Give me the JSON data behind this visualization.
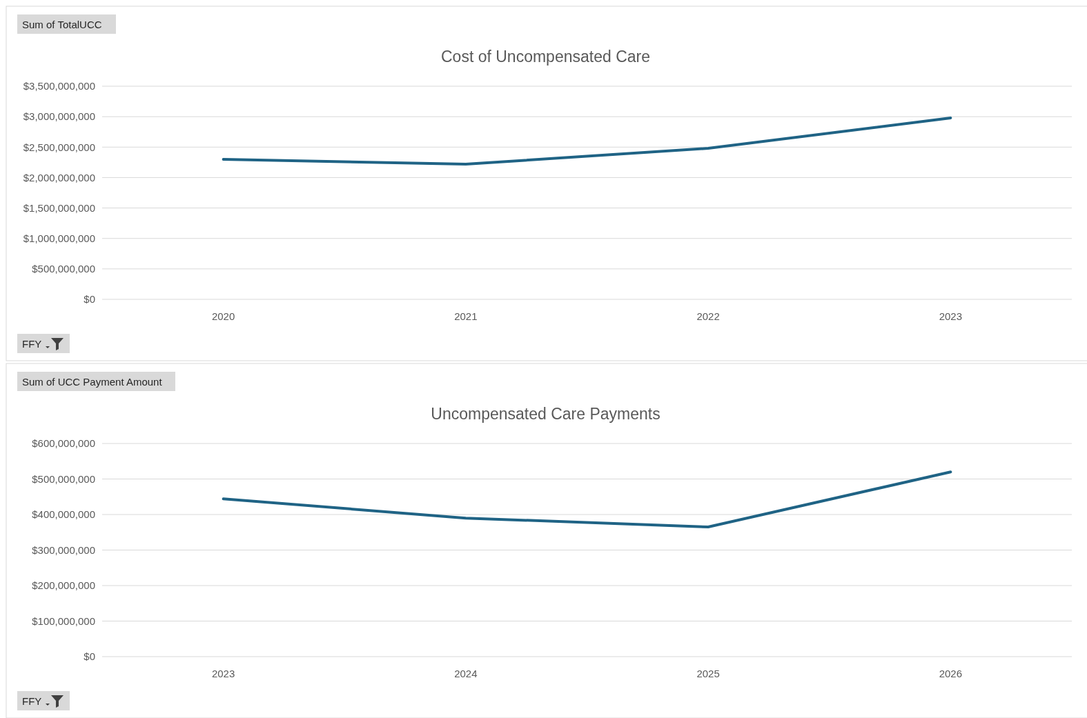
{
  "chart_data": [
    {
      "type": "line",
      "title": "Cost of Uncompensated Care",
      "categories": [
        "2020",
        "2021",
        "2022",
        "2023"
      ],
      "series": [
        {
          "color": "#1f6385",
          "values": [
            2300000000,
            2220000000,
            2480000000,
            2980000000
          ]
        }
      ],
      "ylim": [
        0,
        3500000000
      ],
      "yticks": [
        {
          "value": 0,
          "label": "$0"
        },
        {
          "value": 500000000,
          "label": "$500,000,000"
        },
        {
          "value": 1000000000,
          "label": "$1,000,000,000"
        },
        {
          "value": 1500000000,
          "label": "$1,500,000,000"
        },
        {
          "value": 2000000000,
          "label": "$2,000,000,000"
        },
        {
          "value": 2500000000,
          "label": "$2,500,000,000"
        },
        {
          "value": 3000000000,
          "label": "$3,000,000,000"
        },
        {
          "value": 3500000000,
          "label": "$3,500,000,000"
        }
      ],
      "grid": "y",
      "annotations": [
        "Sum of TotalUCC",
        "FFY"
      ]
    },
    {
      "type": "line",
      "title": "Uncompensated Care Payments",
      "categories": [
        "2023",
        "2024",
        "2025",
        "2026"
      ],
      "series": [
        {
          "color": "#1f6385",
          "values": [
            444000000,
            390000000,
            365000000,
            520000000
          ]
        }
      ],
      "ylim": [
        0,
        600000000
      ],
      "yticks": [
        {
          "value": 0,
          "label": "$0"
        },
        {
          "value": 100000000,
          "label": "$100,000,000"
        },
        {
          "value": 200000000,
          "label": "$200,000,000"
        },
        {
          "value": 300000000,
          "label": "$300,000,000"
        },
        {
          "value": 400000000,
          "label": "$400,000,000"
        },
        {
          "value": 500000000,
          "label": "$500,000,000"
        },
        {
          "value": 600000000,
          "label": "$600,000,000"
        }
      ],
      "grid": "y",
      "annotations": [
        "Sum of UCC Payment Amount",
        "FFY"
      ]
    }
  ]
}
